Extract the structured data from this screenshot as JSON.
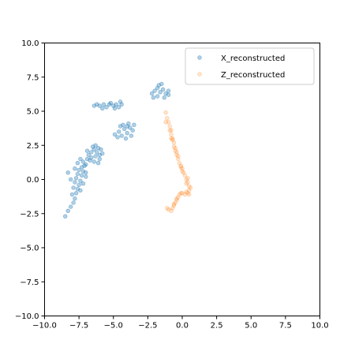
{
  "chart_data": {
    "type": "scatter",
    "title": "",
    "xlabel": "",
    "ylabel": "",
    "xlim": [
      -10,
      10
    ],
    "ylim": [
      -10,
      10
    ],
    "x_ticks": [
      -10,
      -7.5,
      -5,
      -2.5,
      0,
      2.5,
      5,
      7.5,
      10
    ],
    "y_ticks": [
      -10,
      -7.5,
      -5,
      -2.5,
      0,
      2.5,
      5,
      7.5,
      10
    ],
    "x_tick_labels": [
      "−10.0",
      "−7.5",
      "−5.0",
      "−2.5",
      "0.0",
      "2.5",
      "5.0",
      "7.5",
      "10.0"
    ],
    "y_tick_labels": [
      "−10.0",
      "−7.5",
      "−5.0",
      "−2.5",
      "0.0",
      "2.5",
      "5.0",
      "7.5",
      "10.0"
    ],
    "grid": false,
    "legend_position": "top-right",
    "series": [
      {
        "name": "X_reconstructed",
        "color": "#1f77b4",
        "opacity": 0.35,
        "points": [
          [
            -8.5,
            -2.7
          ],
          [
            -8.3,
            -2.3
          ],
          [
            -8.1,
            -2.0
          ],
          [
            -7.9,
            -1.7
          ],
          [
            -7.8,
            -1.4
          ],
          [
            -8.0,
            -1.1
          ],
          [
            -7.7,
            -1.0
          ],
          [
            -7.6,
            -0.7
          ],
          [
            -7.9,
            -0.6
          ],
          [
            -7.5,
            -0.4
          ],
          [
            -7.8,
            -0.2
          ],
          [
            -7.4,
            -0.1
          ],
          [
            -7.7,
            0.1
          ],
          [
            -7.3,
            0.3
          ],
          [
            -7.6,
            0.4
          ],
          [
            -7.2,
            0.6
          ],
          [
            -7.5,
            0.7
          ],
          [
            -7.3,
            0.9
          ],
          [
            -7.1,
            1.0
          ],
          [
            -7.6,
            1.2
          ],
          [
            -7.2,
            1.3
          ],
          [
            -7.0,
            1.1
          ],
          [
            -7.8,
            0.8
          ],
          [
            -8.3,
            0.5
          ],
          [
            -8.1,
            0.0
          ],
          [
            -7.4,
            -0.8
          ],
          [
            -7.2,
            -0.3
          ],
          [
            -7.0,
            0.2
          ],
          [
            -7.4,
            1.5
          ],
          [
            -7.0,
            0.5
          ],
          [
            -6.9,
            1.5
          ],
          [
            -6.8,
            1.8
          ],
          [
            -6.6,
            2.0
          ],
          [
            -6.4,
            2.2
          ],
          [
            -6.2,
            2.0
          ],
          [
            -6.0,
            1.8
          ],
          [
            -6.3,
            1.7
          ],
          [
            -6.6,
            1.6
          ],
          [
            -6.1,
            2.3
          ],
          [
            -6.5,
            2.4
          ],
          [
            -6.9,
            2.1
          ],
          [
            -6.0,
            1.5
          ],
          [
            -5.8,
            1.9
          ],
          [
            -6.3,
            2.5
          ],
          [
            -6.7,
            1.4
          ],
          [
            -6.4,
            1.3
          ],
          [
            -6.1,
            1.2
          ],
          [
            -5.9,
            2.2
          ],
          [
            -6.2,
            5.5
          ],
          [
            -6.0,
            5.4
          ],
          [
            -5.7,
            5.5
          ],
          [
            -5.5,
            5.3
          ],
          [
            -5.3,
            5.5
          ],
          [
            -5.0,
            5.4
          ],
          [
            -4.8,
            5.5
          ],
          [
            -4.6,
            5.3
          ],
          [
            -4.4,
            5.5
          ],
          [
            -5.2,
            5.6
          ],
          [
            -5.8,
            5.2
          ],
          [
            -4.9,
            5.2
          ],
          [
            -4.5,
            5.7
          ],
          [
            -6.4,
            5.4
          ],
          [
            -4.9,
            3.3
          ],
          [
            -4.6,
            3.5
          ],
          [
            -4.4,
            3.2
          ],
          [
            -4.2,
            3.7
          ],
          [
            -4.0,
            3.4
          ],
          [
            -3.8,
            3.8
          ],
          [
            -3.6,
            3.6
          ],
          [
            -3.5,
            4.0
          ],
          [
            -4.1,
            3.0
          ],
          [
            -4.3,
            4.0
          ],
          [
            -3.9,
            4.1
          ],
          [
            -4.7,
            3.1
          ],
          [
            -3.7,
            3.2
          ],
          [
            -4.5,
            3.9
          ],
          [
            -4.0,
            3.9
          ],
          [
            -2.2,
            6.3
          ],
          [
            -2.0,
            6.5
          ],
          [
            -1.8,
            6.7
          ],
          [
            -1.6,
            6.4
          ],
          [
            -1.4,
            6.6
          ],
          [
            -1.2,
            6.3
          ],
          [
            -1.0,
            6.5
          ],
          [
            -1.8,
            6.1
          ],
          [
            -1.5,
            7.0
          ],
          [
            -1.3,
            6.0
          ],
          [
            -2.1,
            6.0
          ],
          [
            -1.0,
            6.2
          ],
          [
            -1.7,
            6.9
          ]
        ]
      },
      {
        "name": "Z_reconstructed",
        "color": "#ff7f0e",
        "opacity": 0.2,
        "points": [
          [
            -1.2,
            4.9
          ],
          [
            -1.1,
            4.5
          ],
          [
            -1.0,
            4.2
          ],
          [
            -0.9,
            3.9
          ],
          [
            -0.8,
            3.6
          ],
          [
            -0.8,
            3.3
          ],
          [
            -0.7,
            3.0
          ],
          [
            -0.6,
            2.7
          ],
          [
            -0.6,
            2.4
          ],
          [
            -0.5,
            2.1
          ],
          [
            -0.4,
            1.8
          ],
          [
            -0.3,
            1.5
          ],
          [
            -0.2,
            1.2
          ],
          [
            -0.1,
            0.9
          ],
          [
            0.0,
            0.6
          ],
          [
            0.2,
            0.3
          ],
          [
            0.3,
            0.0
          ],
          [
            0.4,
            -0.2
          ],
          [
            0.5,
            -0.5
          ],
          [
            0.5,
            -0.8
          ],
          [
            0.4,
            -1.0
          ],
          [
            0.2,
            -1.1
          ],
          [
            0.0,
            -1.0
          ],
          [
            -0.2,
            -1.1
          ],
          [
            -0.3,
            -1.3
          ],
          [
            -0.4,
            -1.5
          ],
          [
            -0.5,
            -1.7
          ],
          [
            -0.6,
            -1.9
          ],
          [
            -0.7,
            -2.1
          ],
          [
            -0.8,
            -2.3
          ],
          [
            -1.1,
            -2.1
          ],
          [
            -1.2,
            4.2
          ],
          [
            -0.9,
            3.6
          ],
          [
            -0.7,
            2.9
          ],
          [
            -0.5,
            2.3
          ],
          [
            -0.3,
            1.7
          ],
          [
            -0.1,
            1.0
          ],
          [
            0.1,
            0.5
          ],
          [
            0.3,
            -0.3
          ],
          [
            0.6,
            -0.6
          ],
          [
            0.3,
            -0.9
          ],
          [
            -0.1,
            -1.0
          ],
          [
            -0.4,
            -1.4
          ],
          [
            -0.6,
            -1.8
          ],
          [
            -1.0,
            -2.2
          ],
          [
            -0.8,
            3.0
          ],
          [
            -0.4,
            2.0
          ],
          [
            0.0,
            0.8
          ],
          [
            0.4,
            0.1
          ],
          [
            0.5,
            -1.1
          ]
        ]
      }
    ]
  }
}
